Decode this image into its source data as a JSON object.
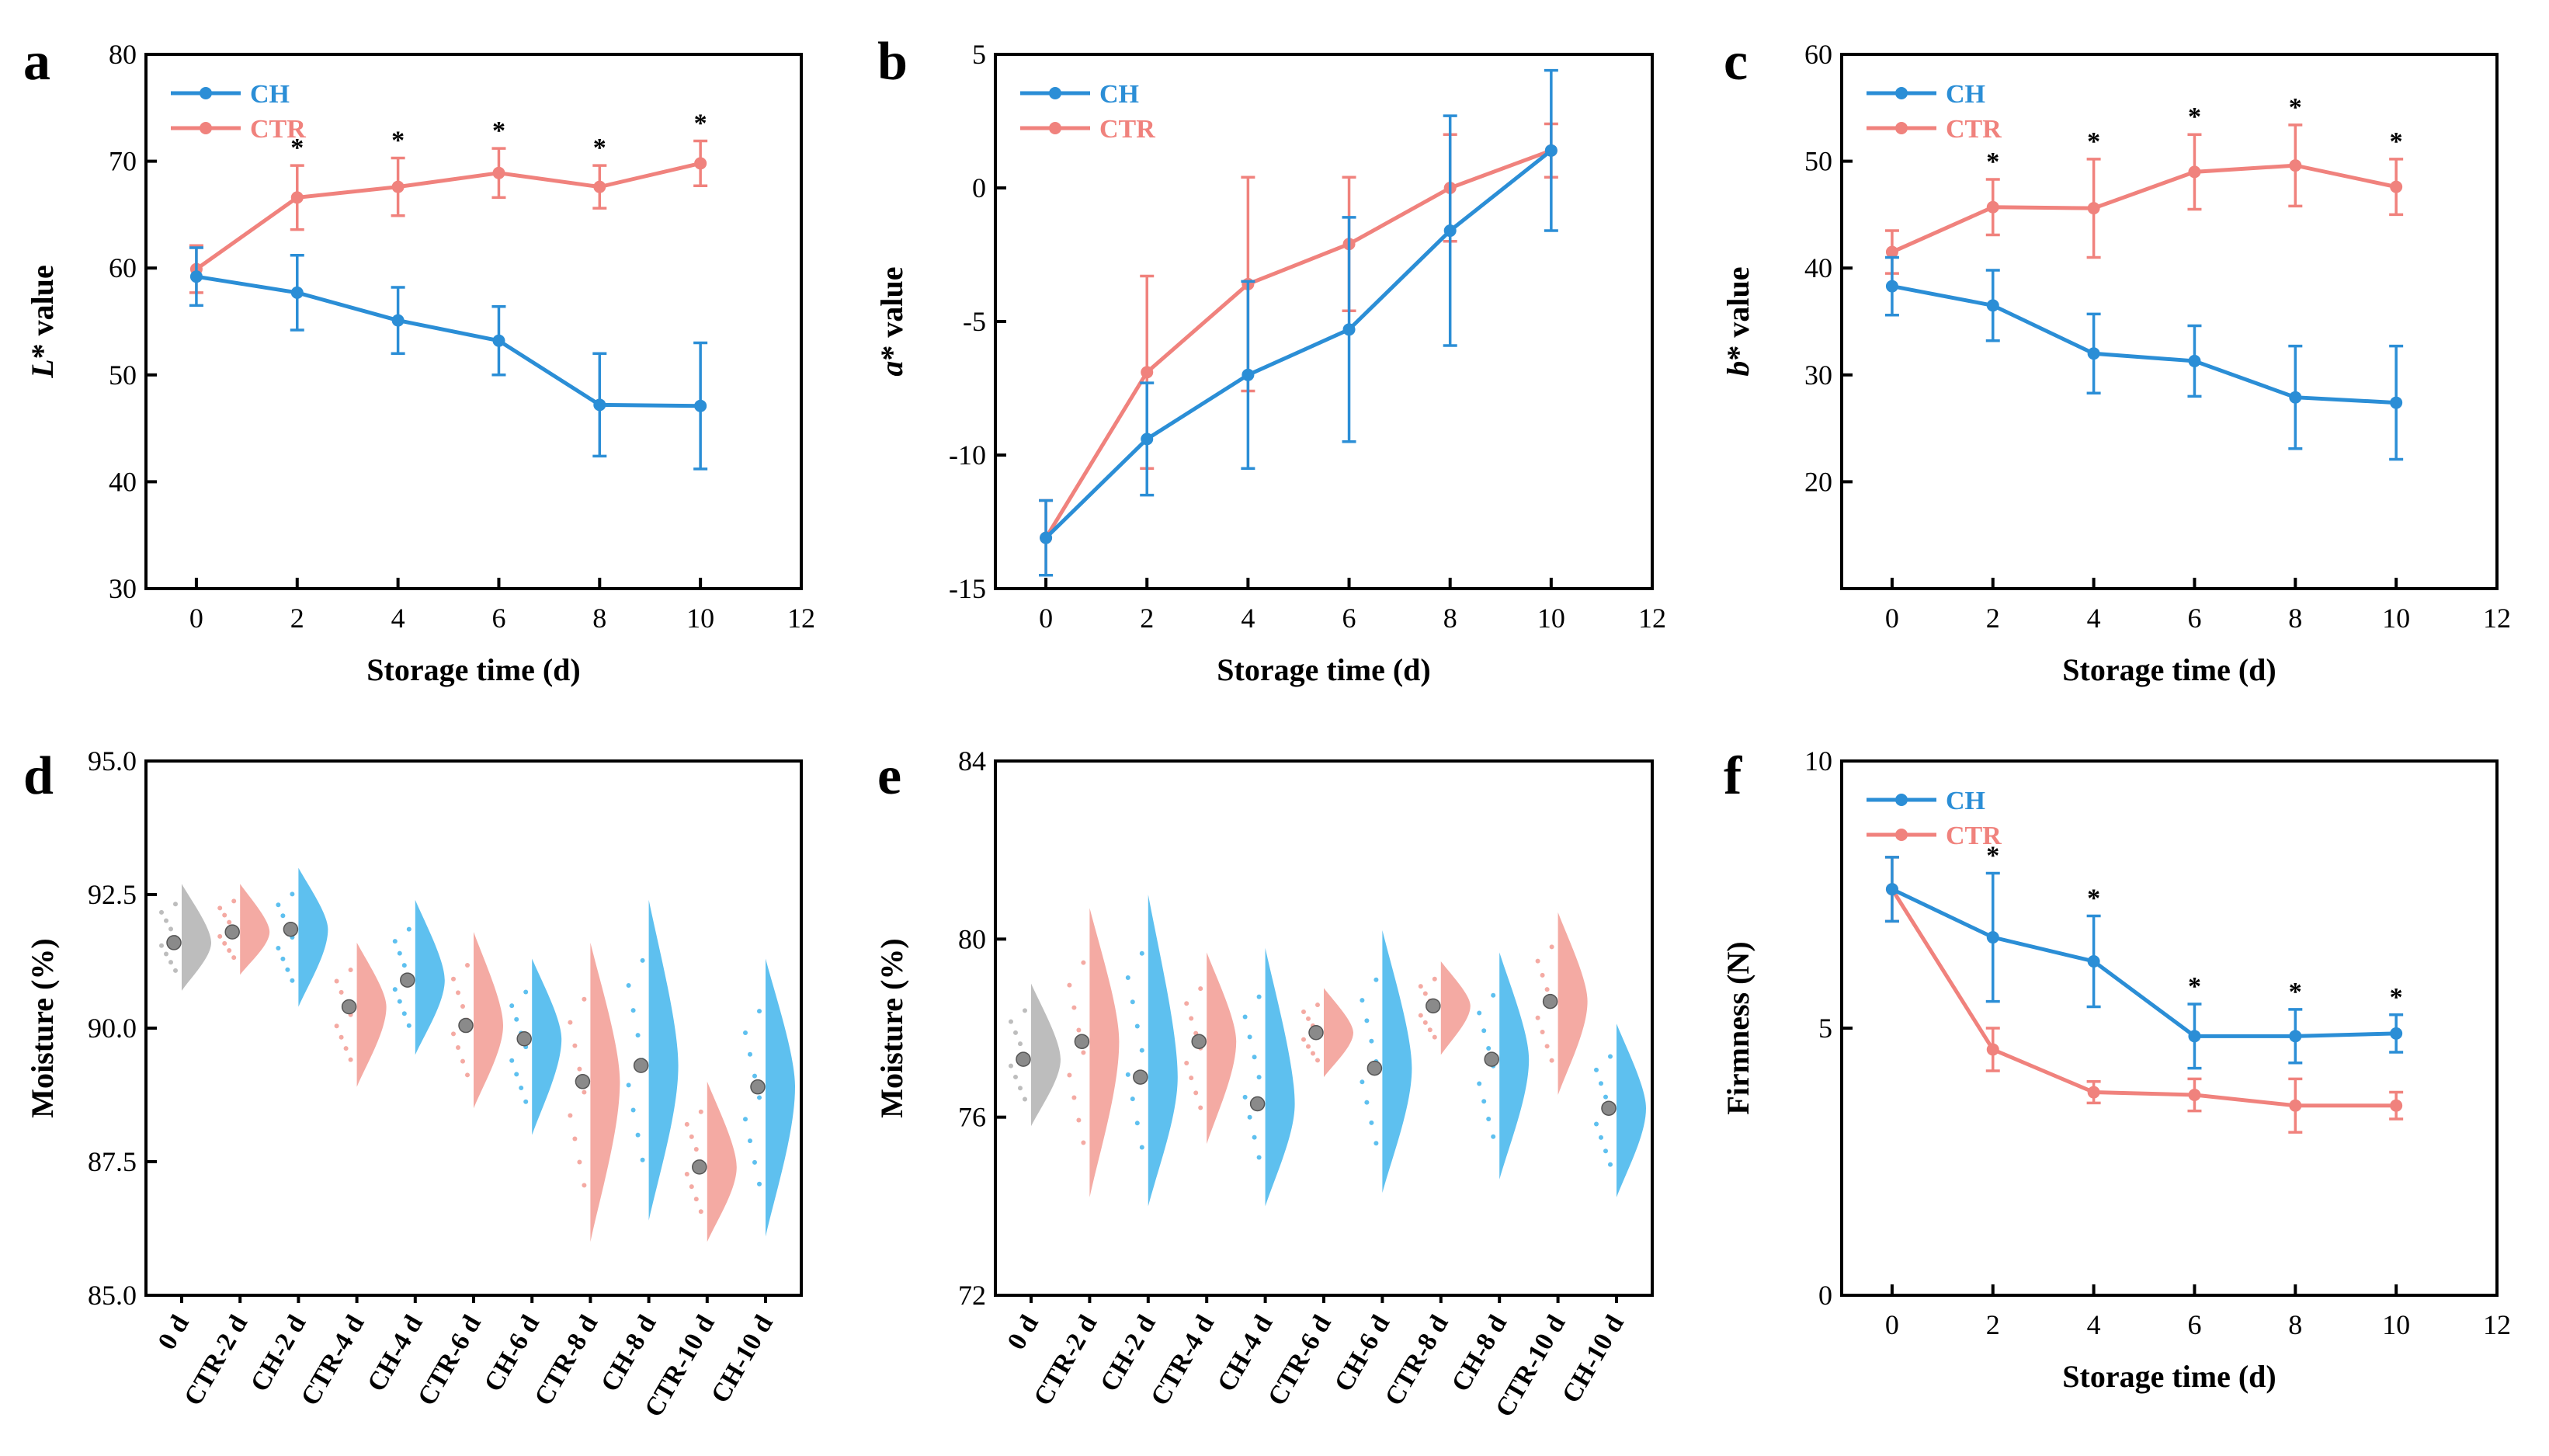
{
  "colors": {
    "CH": "#2b8ed6",
    "CTR": "#f0827d",
    "CH_fill": "#5ec0ef",
    "CTR_fill": "#f4aaa3",
    "init_fill": "#bdbdbd",
    "marker": "#8a8a8a"
  },
  "chart_data": [
    {
      "type": "line",
      "panel": "a",
      "xlabel": "Storage time (d)",
      "ylabel": "L* value",
      "xlim": [
        -1,
        12
      ],
      "ylim": [
        30,
        80
      ],
      "xticks": [
        0,
        2,
        4,
        6,
        8,
        10,
        12
      ],
      "yticks": [
        30,
        40,
        50,
        60,
        70,
        80
      ],
      "x": [
        0,
        2,
        4,
        6,
        8,
        10
      ],
      "series": [
        {
          "name": "CH",
          "values": [
            59.2,
            57.7,
            55.1,
            53.2,
            47.2,
            47.1
          ],
          "err": [
            2.7,
            3.5,
            3.1,
            3.2,
            4.8,
            5.9
          ]
        },
        {
          "name": "CTR",
          "values": [
            59.9,
            66.6,
            67.6,
            68.9,
            67.6,
            69.8
          ],
          "err": [
            2.2,
            3.0,
            2.7,
            2.3,
            2.0,
            2.1
          ]
        }
      ],
      "stars": [
        {
          "x": 2,
          "label": "*"
        },
        {
          "x": 4,
          "label": "*"
        },
        {
          "x": 6,
          "label": "*"
        },
        {
          "x": 8,
          "label": "*"
        },
        {
          "x": 10,
          "label": "*"
        }
      ]
    },
    {
      "type": "line",
      "panel": "b",
      "xlabel": "Storage time (d)",
      "ylabel": "a* value",
      "xlim": [
        -1,
        12
      ],
      "ylim": [
        -15,
        5
      ],
      "xticks": [
        0,
        2,
        4,
        6,
        8,
        10,
        12
      ],
      "yticks": [
        -15,
        -10,
        -5,
        0,
        5
      ],
      "x": [
        0,
        2,
        4,
        6,
        8,
        10
      ],
      "series": [
        {
          "name": "CH",
          "values": [
            -13.1,
            -9.4,
            -7.0,
            -5.3,
            -1.6,
            1.4
          ],
          "err": [
            1.4,
            2.1,
            3.5,
            4.2,
            4.3,
            3.0
          ]
        },
        {
          "name": "CTR",
          "values": [
            -13.1,
            -6.9,
            -3.6,
            -2.1,
            0.0,
            1.4
          ],
          "err": [
            1.4,
            3.6,
            4.0,
            2.5,
            2.0,
            1.0
          ]
        }
      ],
      "stars": []
    },
    {
      "type": "line",
      "panel": "c",
      "xlabel": "Storage time (d)",
      "ylabel": "b* value",
      "xlim": [
        -1,
        12
      ],
      "ylim": [
        10,
        60
      ],
      "xticks": [
        0,
        2,
        4,
        6,
        8,
        10,
        12
      ],
      "yticks": [
        20,
        30,
        40,
        50,
        60
      ],
      "x": [
        0,
        2,
        4,
        6,
        8,
        10
      ],
      "series": [
        {
          "name": "CH",
          "values": [
            38.3,
            36.5,
            32.0,
            31.3,
            27.9,
            27.4
          ],
          "err": [
            2.7,
            3.3,
            3.7,
            3.3,
            4.8,
            5.3
          ]
        },
        {
          "name": "CTR",
          "values": [
            41.5,
            45.7,
            45.6,
            49.0,
            49.6,
            47.6
          ],
          "err": [
            2.0,
            2.6,
            4.6,
            3.5,
            3.8,
            2.6
          ]
        }
      ],
      "stars": [
        {
          "x": 2,
          "label": "*"
        },
        {
          "x": 4,
          "label": "*"
        },
        {
          "x": 6,
          "label": "*"
        },
        {
          "x": 8,
          "label": "*"
        },
        {
          "x": 10,
          "label": "*"
        }
      ]
    },
    {
      "type": "violin",
      "panel": "d",
      "ylabel": "Moisture (%)",
      "ylim": [
        85,
        95
      ],
      "yticks": [
        85.0,
        87.5,
        90.0,
        92.5,
        95.0
      ],
      "ytick_labels": [
        "85.0",
        "87.5",
        "90.0",
        "92.5",
        "95.0"
      ],
      "categories": [
        "0 d",
        "CTR-2 d",
        "CH-2 d",
        "CTR-4 d",
        "CH-4 d",
        "CTR-6 d",
        "CH-6 d",
        "CTR-8 d",
        "CH-8 d",
        "CTR-10 d",
        "CH-10 d"
      ],
      "groups": [
        "init",
        "CTR",
        "CH",
        "CTR",
        "CH",
        "CTR",
        "CH",
        "CTR",
        "CH",
        "CTR",
        "CH"
      ],
      "means": [
        91.6,
        91.8,
        91.85,
        90.4,
        90.9,
        90.05,
        89.8,
        89.0,
        89.3,
        87.4,
        88.9
      ],
      "mins": [
        90.7,
        91.0,
        90.4,
        88.9,
        89.5,
        88.5,
        88.0,
        86.0,
        86.4,
        86.0,
        86.1
      ],
      "maxs": [
        92.7,
        92.7,
        93.0,
        91.6,
        92.4,
        91.8,
        91.3,
        91.6,
        92.4,
        89.0,
        91.3
      ]
    },
    {
      "type": "violin",
      "panel": "e",
      "ylabel": "Moisture (%)",
      "ylim": [
        72,
        84
      ],
      "yticks": [
        72,
        76,
        80,
        84
      ],
      "ytick_labels": [
        "72",
        "76",
        "80",
        "84"
      ],
      "categories": [
        "0 d",
        "CTR-2 d",
        "CH-2 d",
        "CTR-4 d",
        "CH-4 d",
        "CTR-6 d",
        "CH-6 d",
        "CTR-8 d",
        "CH-8 d",
        "CTR-10 d",
        "CH-10 d"
      ],
      "groups": [
        "init",
        "CTR",
        "CH",
        "CTR",
        "CH",
        "CTR",
        "CH",
        "CTR",
        "CH",
        "CTR",
        "CH"
      ],
      "means": [
        77.3,
        77.7,
        76.9,
        77.7,
        76.3,
        77.9,
        77.1,
        78.5,
        77.3,
        78.6,
        76.2
      ],
      "mins": [
        75.8,
        74.2,
        74.0,
        75.4,
        74.0,
        76.9,
        74.3,
        77.4,
        74.6,
        76.5,
        74.2
      ],
      "maxs": [
        79.0,
        80.7,
        81.0,
        79.7,
        79.8,
        78.9,
        80.2,
        79.5,
        79.7,
        80.6,
        78.1
      ]
    },
    {
      "type": "line",
      "panel": "f",
      "xlabel": "Storage time (d)",
      "ylabel": "Firmness (N)",
      "xlim": [
        -1,
        12
      ],
      "ylim": [
        0,
        10
      ],
      "xticks": [
        0,
        2,
        4,
        6,
        8,
        10,
        12
      ],
      "yticks": [
        0,
        5,
        10
      ],
      "x": [
        0,
        2,
        4,
        6,
        8,
        10
      ],
      "series": [
        {
          "name": "CH",
          "values": [
            7.6,
            6.7,
            6.25,
            4.85,
            4.85,
            4.9
          ],
          "err": [
            0.6,
            1.2,
            0.85,
            0.6,
            0.5,
            0.35
          ]
        },
        {
          "name": "CTR",
          "values": [
            7.6,
            4.6,
            3.8,
            3.75,
            3.55,
            3.55
          ],
          "err": [
            0.6,
            0.4,
            0.2,
            0.3,
            0.5,
            0.25
          ]
        }
      ],
      "stars": [
        {
          "x": 2,
          "label": "*"
        },
        {
          "x": 4,
          "label": "*"
        },
        {
          "x": 6,
          "label": "*"
        },
        {
          "x": 8,
          "label": "*"
        },
        {
          "x": 10,
          "label": "*"
        }
      ]
    }
  ]
}
